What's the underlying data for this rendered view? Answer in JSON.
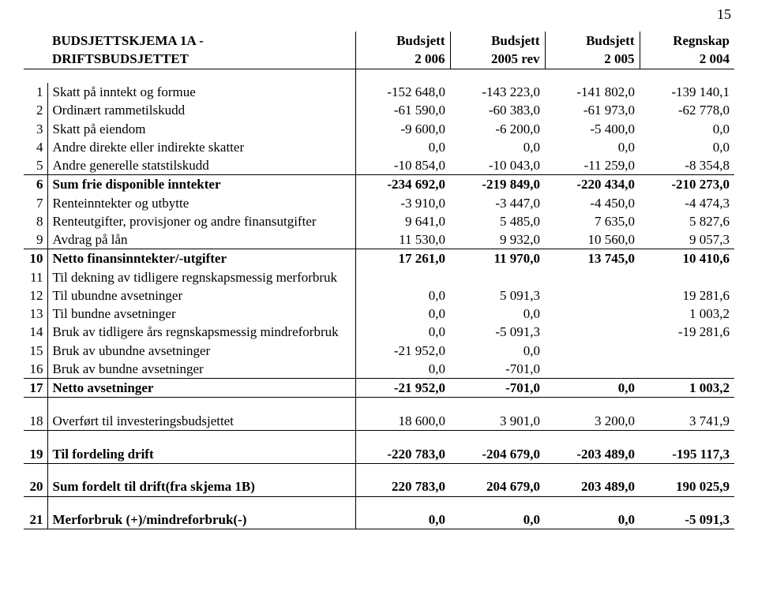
{
  "page_number": "15",
  "header": {
    "title1": "BUDSJETTSKJEMA 1A -",
    "title2": "DRIFTSBUDSJETTET",
    "cols_top": [
      "Budsjett",
      "Budsjett",
      "Budsjett",
      "Regnskap"
    ],
    "cols_bot": [
      "2 006",
      "2005 rev",
      "2 005",
      "2 004"
    ]
  },
  "rows": [
    {
      "n": "1",
      "label": "Skatt på inntekt og formue",
      "v": [
        "-152 648,0",
        "-143 223,0",
        "-141 802,0",
        "-139 140,1"
      ]
    },
    {
      "n": "2",
      "label": "Ordinært rammetilskudd",
      "v": [
        "-61 590,0",
        "-60 383,0",
        "-61 973,0",
        "-62 778,0"
      ]
    },
    {
      "n": "3",
      "label": "Skatt på eiendom",
      "v": [
        "-9 600,0",
        "-6 200,0",
        "-5 400,0",
        "0,0"
      ]
    },
    {
      "n": "4",
      "label": "Andre direkte eller indirekte skatter",
      "v": [
        "0,0",
        "0,0",
        "0,0",
        "0,0"
      ]
    },
    {
      "n": "5",
      "label": "Andre generelle statstilskudd",
      "v": [
        "-10 854,0",
        "-10 043,0",
        "-11 259,0",
        "-8 354,8"
      ]
    },
    {
      "n": "6",
      "label": "Sum frie disponible inntekter",
      "v": [
        "-234 692,0",
        "-219 849,0",
        "-220 434,0",
        "-210 273,0"
      ],
      "bold": true,
      "topb": true
    },
    {
      "n": "7",
      "label": "Renteinntekter og utbytte",
      "v": [
        "-3 910,0",
        "-3 447,0",
        "-4 450,0",
        "-4 474,3"
      ]
    },
    {
      "n": "8",
      "label": "Renteutgifter, provisjoner og andre finansutgifter",
      "v": [
        "9 641,0",
        "5 485,0",
        "7 635,0",
        "5 827,6"
      ]
    },
    {
      "n": "9",
      "label": "Avdrag på lån",
      "v": [
        "11 530,0",
        "9 932,0",
        "10 560,0",
        "9 057,3"
      ]
    },
    {
      "n": "10",
      "label": "Netto finansinntekter/-utgifter",
      "v": [
        "17 261,0",
        "11 970,0",
        "13 745,0",
        "10 410,6"
      ],
      "bold": true,
      "topb": true
    },
    {
      "n": "11",
      "label": "Til dekning av tidligere regnskapsmessig merforbruk",
      "v": [
        "",
        "",
        "",
        ""
      ]
    },
    {
      "n": "12",
      "label": "Til ubundne avsetninger",
      "v": [
        "0,0",
        "5 091,3",
        "",
        "19 281,6"
      ]
    },
    {
      "n": "13",
      "label": "Til bundne avsetninger",
      "v": [
        "0,0",
        "0,0",
        "",
        "1 003,2"
      ]
    },
    {
      "n": "14",
      "label": "Bruk av tidligere års regnskapsmessig mindreforbruk",
      "v": [
        "0,0",
        "-5 091,3",
        "",
        "-19 281,6"
      ]
    },
    {
      "n": "15",
      "label": "Bruk av ubundne avsetninger",
      "v": [
        "-21 952,0",
        "0,0",
        "",
        ""
      ]
    },
    {
      "n": "16",
      "label": "Bruk av bundne avsetninger",
      "v": [
        "0,0",
        "-701,0",
        "",
        ""
      ]
    },
    {
      "n": "17",
      "label": "Netto avsetninger",
      "v": [
        "-21 952,0",
        "-701,0",
        "0,0",
        "1 003,2"
      ],
      "bold": true,
      "topb": true,
      "botb": true
    }
  ],
  "rows2": [
    {
      "n": "18",
      "label": "Overført til investeringsbudsjettet",
      "v": [
        "18 600,0",
        "3 901,0",
        "3 200,0",
        "3 741,9"
      ],
      "botb": true
    },
    {
      "spacer": true
    },
    {
      "n": "19",
      "label": "Til fordeling drift",
      "v": [
        "-220 783,0",
        "-204 679,0",
        "-203 489,0",
        "-195 117,3"
      ],
      "bold": true,
      "botb": true
    },
    {
      "spacer": true
    },
    {
      "n": "20",
      "label": "Sum fordelt til drift(fra skjema 1B)",
      "v": [
        "220 783,0",
        "204 679,0",
        "203 489,0",
        "190 025,9"
      ],
      "bold": true,
      "botb": true
    },
    {
      "spacer": true
    },
    {
      "n": "21",
      "label": "Merforbruk (+)/mindreforbruk(-)",
      "v": [
        "0,0",
        "0,0",
        "0,0",
        "-5 091,3"
      ],
      "bold": true,
      "botb": true
    }
  ]
}
